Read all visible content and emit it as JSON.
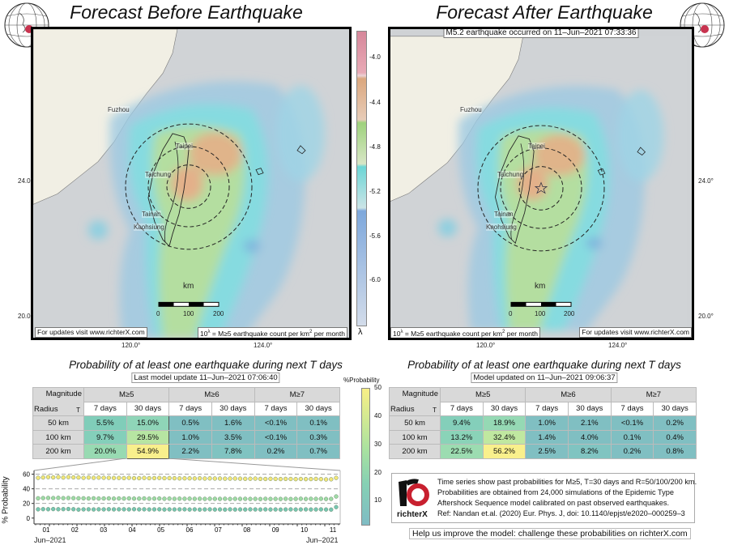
{
  "left_panel": {
    "title": "Forecast Before Earthquake",
    "note_left": "For updates visit www.richterX.com",
    "note_right_pre": "10",
    "note_right_sup": "λ",
    "note_right_mid": " = M≥5 earthquake count per km",
    "note_right_sup2": "2",
    "note_right_post": " per month",
    "cities": [
      "Fuzhou",
      "Taipei",
      "Taichung",
      "Tainan",
      "Kaohsiung"
    ],
    "lat_labels": [
      "24.0°",
      "20.0°"
    ],
    "lon_labels": [
      "120.0°",
      "124.0°"
    ],
    "scale": {
      "unit": "km",
      "ticks": [
        "0",
        "100",
        "200"
      ]
    }
  },
  "right_panel": {
    "title": "Forecast After Earthquake",
    "event_banner": "M5.2 earthquake occurred on 11–Jun–2021 07:33:36",
    "note_left": "For updates visit www.richterX.com",
    "cities": [
      "Fuzhou",
      "Taipei",
      "Taichung",
      "Tainan",
      "Kaohsiung"
    ],
    "lat_labels": [
      "24.0°",
      "20.0°"
    ],
    "lon_labels": [
      "120.0°",
      "124.0°"
    ],
    "scale": {
      "unit": "km",
      "ticks": [
        "0",
        "100",
        "200"
      ]
    }
  },
  "lambda_colorbar": {
    "ticks": [
      "-4.0",
      "-4.4",
      "-4.8",
      "-5.2",
      "-5.6",
      "-6.0"
    ],
    "label": "λ"
  },
  "prob_colorbar": {
    "label": "%Probability",
    "ticks": [
      "50",
      "40",
      "30",
      "20",
      "10"
    ]
  },
  "tables": [
    {
      "title": "Probability of at least one earthquake during next T days",
      "update": "Last model update 11–Jun–2021 07:06:40",
      "corner_top": "Magnitude",
      "corner_bottom_left": "Radius",
      "corner_bottom_right": "T",
      "magnitudes": [
        "M≥5",
        "M≥6",
        "M≥7"
      ],
      "periods": [
        "7 days",
        "30 days",
        "7 days",
        "30 days",
        "7 days",
        "30 days"
      ],
      "rows": [
        {
          "radius": "50 km",
          "cells": [
            "5.5%",
            "15.0%",
            "0.5%",
            "1.6%",
            "<0.1%",
            "0.1%"
          ],
          "bg": [
            "#80cdb9",
            "#8fd5b8",
            "#80bfc2",
            "#80bfc2",
            "#80bfc2",
            "#80bfc2"
          ]
        },
        {
          "radius": "100 km",
          "cells": [
            "9.7%",
            "29.5%",
            "1.0%",
            "3.5%",
            "<0.1%",
            "0.3%"
          ],
          "bg": [
            "#84cfba",
            "#b7e5a2",
            "#80bfc2",
            "#80bfc2",
            "#80bfc2",
            "#80bfc2"
          ]
        },
        {
          "radius": "200 km",
          "cells": [
            "20.0%",
            "54.9%",
            "2.2%",
            "7.8%",
            "0.2%",
            "0.7%"
          ],
          "bg": [
            "#98dab2",
            "#f8ef8c",
            "#80bfc2",
            "#80c3c1",
            "#80bfc2",
            "#80bfc2"
          ]
        }
      ]
    },
    {
      "title": "Probability of at least one earthquake during next T days",
      "update": "Model updated on 11–Jun–2021 09:06:37",
      "corner_top": "Magnitude",
      "corner_bottom_left": "Radius",
      "corner_bottom_right": "T",
      "magnitudes": [
        "M≥5",
        "M≥6",
        "M≥7"
      ],
      "periods": [
        "7 days",
        "30 days",
        "7 days",
        "30 days",
        "7 days",
        "30 days"
      ],
      "rows": [
        {
          "radius": "50 km",
          "cells": [
            "9.4%",
            "18.9%",
            "1.0%",
            "2.1%",
            "<0.1%",
            "0.2%"
          ],
          "bg": [
            "#84cfba",
            "#95d9b4",
            "#80bfc2",
            "#80bfc2",
            "#80bfc2",
            "#80bfc2"
          ]
        },
        {
          "radius": "100 km",
          "cells": [
            "13.2%",
            "32.4%",
            "1.4%",
            "4.0%",
            "0.1%",
            "0.4%"
          ],
          "bg": [
            "#8ad3b8",
            "#c0e8a0",
            "#80bfc2",
            "#80bfc2",
            "#80bfc2",
            "#80bfc2"
          ]
        },
        {
          "radius": "200 km",
          "cells": [
            "22.5%",
            "56.2%",
            "2.5%",
            "8.2%",
            "0.2%",
            "0.8%"
          ],
          "bg": [
            "#9cdcb1",
            "#f9f08c",
            "#80bfc2",
            "#80c4c1",
            "#80bfc2",
            "#80bfc2"
          ]
        }
      ]
    }
  ],
  "chart_data": {
    "type": "scatter",
    "ylabel": "% Probability",
    "ylim": [
      -8,
      65
    ],
    "yticks": [
      "60",
      "40",
      "20",
      "0"
    ],
    "xticks": [
      "01",
      "02",
      "03",
      "04",
      "05",
      "06",
      "07",
      "08",
      "09",
      "10",
      "11"
    ],
    "xlabel_left": "Jun–2021",
    "xlabel_right": "Jun–2021",
    "series": [
      {
        "name": "R=200 km",
        "color": "#f3e67a",
        "values": [
          55,
          55.5,
          56,
          55.6,
          56,
          55.4,
          56,
          55.6,
          55.5,
          55,
          55.4,
          55,
          55.3,
          55.1,
          55,
          54.8,
          54.8,
          54.6,
          55,
          54.5,
          54.5,
          54.8,
          54.5,
          54.6,
          54.8,
          54.5,
          54.6,
          54.4,
          54.2,
          54.3,
          54.3,
          54.1,
          54.3,
          54,
          54.2,
          54,
          54,
          53.8,
          53.9,
          54,
          53.8,
          53.6,
          53.7,
          53.9,
          53.5,
          53.4,
          53.6,
          53.5,
          53.3,
          53.5,
          53.4,
          53.2,
          53.4,
          53.2,
          53.3,
          53.5,
          53.2,
          52.8,
          53,
          54.9
        ]
      },
      {
        "name": "R=100 km",
        "color": "#9fdba6",
        "values": [
          27,
          27.3,
          27.5,
          27.3,
          27.6,
          27.2,
          27.4,
          27.2,
          27,
          27,
          26.8,
          27,
          26.7,
          26.8,
          26.9,
          26.6,
          26.8,
          26.7,
          26.9,
          26.6,
          26.6,
          26.8,
          26.5,
          26.6,
          26.7,
          26.4,
          26.6,
          26.3,
          26.5,
          26.4,
          26.5,
          26.3,
          26.4,
          26.2,
          26.4,
          26.3,
          26.2,
          26.4,
          26.1,
          26.3,
          26.2,
          26.3,
          26.1,
          26.2,
          26,
          26.3,
          26.1,
          26.2,
          26.1,
          26.3,
          26,
          26.2,
          26.4,
          26.1,
          26.3,
          26.2,
          26.4,
          26.1,
          26.2,
          29.5
        ]
      },
      {
        "name": "R=50 km",
        "color": "#77c6b2",
        "values": [
          12,
          12.2,
          12.1,
          12.3,
          12.1,
          12.2,
          12.4,
          12.1,
          11.6,
          11.9,
          12,
          11.8,
          12,
          11.9,
          12.1,
          11.9,
          12,
          12,
          11.9,
          12.1,
          11.9,
          12,
          11.8,
          11.9,
          12,
          11.7,
          11.9,
          11.8,
          11.9,
          12,
          11.7,
          11.9,
          11.6,
          11.8,
          11.9,
          11.7,
          11.8,
          11.6,
          11.9,
          11.7,
          11.8,
          11.7,
          11.9,
          11.8,
          11.7,
          11.9,
          11.7,
          11.8,
          11.6,
          11.8,
          11.9,
          11.7,
          11.8,
          11.9,
          11.7,
          11.8,
          11.9,
          11.7,
          11.6,
          15.0
        ]
      }
    ]
  },
  "info_box": {
    "logo_text": "richterX",
    "lines": [
      "Time series show past probabilities for M≥5, T=30 days and R=50/100/200 km.",
      "Probabilities are obtained from 24,000 simulations of the Epidemic Type",
      "Aftershock Sequence model calibrated on past observed earthquakes.",
      "Ref: Nandan et.al. (2020) Eur. Phys. J, doi: 10.1140/epjst/e2020–000259–3"
    ]
  },
  "footer_link": "Help us improve the model: challenge these probabilities on richterX.com"
}
